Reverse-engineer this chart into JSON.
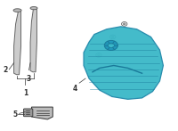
{
  "bg_color": "#ffffff",
  "teal_color": "#3ab8c8",
  "line_color": "#666666",
  "dark_color": "#333333",
  "label_color": "#333333",
  "figsize": [
    2.0,
    1.47
  ],
  "dpi": 100
}
